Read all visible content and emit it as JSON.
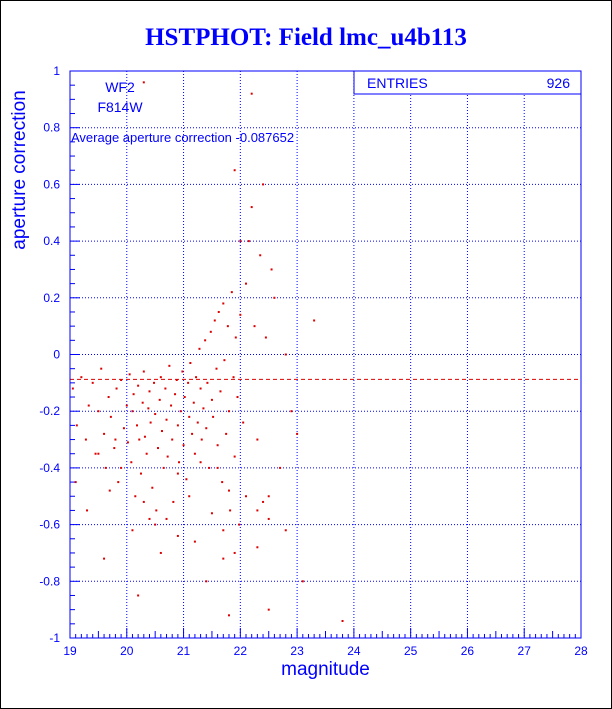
{
  "chart_data": {
    "type": "scatter",
    "title": "HSTPHOT: Field lmc_u4b113",
    "xlabel": "magnitude",
    "ylabel": "aperture correction",
    "xlim": [
      19,
      28
    ],
    "ylim": [
      -1,
      1
    ],
    "x_ticks": [
      "19",
      "20",
      "21",
      "22",
      "23",
      "24",
      "25",
      "26",
      "27",
      "28"
    ],
    "y_ticks": [
      "-1",
      "-0.8",
      "-0.6",
      "-0.4",
      "-0.2",
      "0",
      "0.2",
      "0.4",
      "0.6",
      "0.8",
      "1"
    ],
    "grid": true,
    "grid_style": "dotted",
    "annotations": {
      "chip": "WF2",
      "filter": "F814W",
      "average_text": "Average aperture correction -0.087652",
      "average_value": -0.087652
    },
    "stats": {
      "label": "ENTRIES",
      "value": "926"
    },
    "colors": {
      "axes": "#0000ff",
      "points": "#dd0000",
      "title": "#0000ff",
      "reference_line": "#dd0000"
    },
    "series": [
      {
        "marker": "dot",
        "points_note": "926 entries, clustered at magnitude 19-22 and aperture correction -0.5 to 0.1",
        "x": [
          19.05,
          19.12,
          19.2,
          19.28,
          19.33,
          19.4,
          19.45,
          19.5,
          19.55,
          19.6,
          19.63,
          19.68,
          19.72,
          19.78,
          19.82,
          19.85,
          19.9,
          19.95,
          20.0,
          20.02,
          20.05,
          20.08,
          20.1,
          20.12,
          20.15,
          20.18,
          20.2,
          20.22,
          20.25,
          20.28,
          20.3,
          20.32,
          20.35,
          20.38,
          20.4,
          20.42,
          20.45,
          20.48,
          20.5,
          20.52,
          20.55,
          20.58,
          20.6,
          20.62,
          20.65,
          20.68,
          20.7,
          20.72,
          20.75,
          20.78,
          20.8,
          20.82,
          20.85,
          20.88,
          20.9,
          20.92,
          20.95,
          20.98,
          21.0,
          21.02,
          21.05,
          21.08,
          21.1,
          21.12,
          21.15,
          21.18,
          21.2,
          21.22,
          21.25,
          21.28,
          21.3,
          21.32,
          21.35,
          21.38,
          21.4,
          21.42,
          21.45,
          21.48,
          21.5,
          21.52,
          21.55,
          21.58,
          21.6,
          21.62,
          21.65,
          21.68,
          21.7,
          21.72,
          21.75,
          21.78,
          21.8,
          21.82,
          21.85,
          21.88,
          21.9,
          21.92,
          21.95,
          21.98,
          22.0,
          22.05,
          22.1,
          22.15,
          22.2,
          22.25,
          22.3,
          22.35,
          22.4,
          22.45,
          22.5,
          22.55,
          22.6,
          22.7,
          22.8,
          22.9,
          23.0,
          23.1,
          23.3,
          23.8,
          19.1,
          19.3,
          19.5,
          19.7,
          19.9,
          20.1,
          20.3,
          20.5,
          20.7,
          20.9,
          21.1,
          21.3,
          21.5,
          21.7,
          21.9,
          22.1,
          22.3,
          22.5,
          19.6,
          20.4,
          21.2,
          21.8,
          22.4,
          21.6,
          21.9,
          22.2,
          22.5,
          22.0,
          21.8,
          21.4,
          20.9,
          20.6,
          20.2,
          19.8,
          22.8,
          22.3,
          21.7,
          20.3
        ],
        "y": [
          -0.12,
          -0.25,
          -0.08,
          -0.3,
          -0.18,
          -0.1,
          -0.35,
          -0.2,
          -0.05,
          -0.28,
          -0.4,
          -0.15,
          -0.22,
          -0.33,
          -0.12,
          -0.45,
          -0.09,
          -0.26,
          -0.18,
          -0.31,
          -0.07,
          -0.38,
          -0.2,
          -0.14,
          -0.5,
          -0.25,
          -0.11,
          -0.3,
          -0.42,
          -0.17,
          -0.06,
          -0.29,
          -0.35,
          -0.19,
          -0.13,
          -0.24,
          -0.47,
          -0.1,
          -0.21,
          -0.55,
          -0.33,
          -0.16,
          -0.08,
          -0.27,
          -0.4,
          -0.12,
          -0.23,
          -0.36,
          -0.04,
          -0.18,
          -0.3,
          -0.52,
          -0.14,
          -0.09,
          -0.25,
          -0.38,
          -0.2,
          -0.06,
          -0.32,
          -0.15,
          -0.44,
          -0.1,
          -0.22,
          -0.03,
          -0.28,
          -0.17,
          -0.35,
          -0.08,
          -0.24,
          0.02,
          -0.12,
          -0.3,
          -0.19,
          0.05,
          -0.26,
          -0.1,
          -0.4,
          0.08,
          -0.16,
          -0.22,
          0.12,
          -0.05,
          -0.32,
          0.15,
          -0.13,
          -0.45,
          0.18,
          -0.02,
          -0.28,
          0.1,
          -0.2,
          -0.55,
          0.22,
          -0.08,
          -0.36,
          0.06,
          -0.15,
          -0.6,
          0.14,
          -0.24,
          0.25,
          0.4,
          0.52,
          0.1,
          -0.3,
          0.35,
          0.6,
          0.06,
          -0.5,
          0.3,
          0.2,
          -0.4,
          0.0,
          -0.2,
          -0.28,
          -0.8,
          0.12,
          -0.94,
          -0.45,
          -0.55,
          -0.35,
          -0.48,
          -0.4,
          -0.62,
          -0.52,
          -0.6,
          -0.58,
          -0.42,
          -0.5,
          -0.38,
          -0.56,
          -0.62,
          -0.7,
          -0.5,
          -0.55,
          -0.58,
          -0.72,
          -0.58,
          -0.66,
          -0.48,
          -0.52,
          -0.4,
          0.65,
          0.92,
          -0.9,
          0.4,
          -0.92,
          -0.8,
          -0.64,
          -0.7,
          -0.85,
          -0.3,
          -0.62,
          -0.68,
          -0.72,
          0.96
        ]
      }
    ]
  }
}
